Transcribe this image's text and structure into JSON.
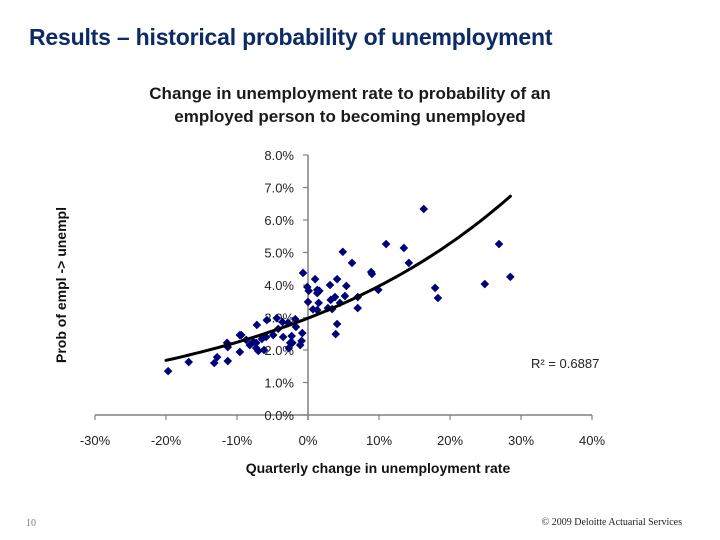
{
  "slide": {
    "title": "Results – historical probability of unemployment",
    "page_number": "10",
    "copyright": "© 2009 Deloitte Actuarial Services"
  },
  "colors": {
    "title": "#0b2a66",
    "marker": "#00007a",
    "trendline": "#000000",
    "axis": "#808080"
  },
  "chart_data": {
    "type": "scatter",
    "title": "Change in unemployment rate to probability of an employed person to becoming unemployed",
    "title_lines": [
      "Change in unemployment rate to probability of an",
      "employed person to becoming unemployed"
    ],
    "xlabel": "Quarterly change in unemployment rate",
    "ylabel": "Prob of empl -> unempl",
    "xlim": [
      -30,
      40
    ],
    "ylim": [
      0,
      8
    ],
    "x_ticks": [
      "-30%",
      "-20%",
      "-10%",
      "0%",
      "10%",
      "20%",
      "30%",
      "40%"
    ],
    "y_ticks": [
      "0.0%",
      "1.0%",
      "2.0%",
      "3.0%",
      "4.0%",
      "5.0%",
      "6.0%",
      "7.0%",
      "8.0%"
    ],
    "grid": false,
    "legend": null,
    "marker": "diamond",
    "trendline": {
      "type": "exponential",
      "equation_approx": "y = 2.98 * exp(0.0286 * x)",
      "x_range": [
        -20,
        28.5
      ],
      "r_squared_label": "R² = 0.6887"
    },
    "points": [
      {
        "x": -19.7,
        "y": 1.35
      },
      {
        "x": -16.8,
        "y": 1.63
      },
      {
        "x": -13.2,
        "y": 1.6
      },
      {
        "x": -12.8,
        "y": 1.78
      },
      {
        "x": -11.3,
        "y": 1.66
      },
      {
        "x": -11.3,
        "y": 2.09
      },
      {
        "x": -11.4,
        "y": 2.22
      },
      {
        "x": -9.6,
        "y": 1.94
      },
      {
        "x": -9.6,
        "y": 2.46
      },
      {
        "x": -9.4,
        "y": 2.46
      },
      {
        "x": -8.7,
        "y": 2.31
      },
      {
        "x": -8.2,
        "y": 2.15
      },
      {
        "x": -7.7,
        "y": 2.25
      },
      {
        "x": -7.3,
        "y": 2.22
      },
      {
        "x": -7.3,
        "y": 2.06
      },
      {
        "x": -7.0,
        "y": 1.97
      },
      {
        "x": -6.5,
        "y": 2.34
      },
      {
        "x": -7.2,
        "y": 2.77
      },
      {
        "x": -5.8,
        "y": 2.92
      },
      {
        "x": -6.2,
        "y": 2.0
      },
      {
        "x": -5.9,
        "y": 2.4
      },
      {
        "x": -4.9,
        "y": 2.46
      },
      {
        "x": -4.2,
        "y": 2.65
      },
      {
        "x": -4.4,
        "y": 2.98
      },
      {
        "x": -3.6,
        "y": 2.86
      },
      {
        "x": -3.5,
        "y": 2.4
      },
      {
        "x": -2.8,
        "y": 2.83
      },
      {
        "x": -2.5,
        "y": 2.22
      },
      {
        "x": -2.7,
        "y": 2.06
      },
      {
        "x": -1.8,
        "y": 2.95
      },
      {
        "x": -2.3,
        "y": 2.43
      },
      {
        "x": -1.7,
        "y": 2.71
      },
      {
        "x": -2.2,
        "y": 2.22
      },
      {
        "x": -0.9,
        "y": 2.28
      },
      {
        "x": -1.1,
        "y": 2.15
      },
      {
        "x": -0.8,
        "y": 2.52
      },
      {
        "x": -0.7,
        "y": 4.37
      },
      {
        "x": -0.1,
        "y": 3.94
      },
      {
        "x": 0.1,
        "y": 3.82
      },
      {
        "x": 0.0,
        "y": 3.48
      },
      {
        "x": 0.7,
        "y": 3.25
      },
      {
        "x": 1.0,
        "y": 4.18
      },
      {
        "x": 1.3,
        "y": 3.85
      },
      {
        "x": 1.3,
        "y": 3.75
      },
      {
        "x": 1.5,
        "y": 3.45
      },
      {
        "x": 1.3,
        "y": 3.23
      },
      {
        "x": 1.6,
        "y": 3.82
      },
      {
        "x": 3.1,
        "y": 4.0
      },
      {
        "x": 3.2,
        "y": 3.54
      },
      {
        "x": 2.8,
        "y": 3.29
      },
      {
        "x": 3.4,
        "y": 3.26
      },
      {
        "x": 4.1,
        "y": 4.18
      },
      {
        "x": 3.8,
        "y": 3.63
      },
      {
        "x": 4.1,
        "y": 2.8
      },
      {
        "x": 3.9,
        "y": 2.49
      },
      {
        "x": 4.9,
        "y": 5.02
      },
      {
        "x": 5.4,
        "y": 3.97
      },
      {
        "x": 5.2,
        "y": 3.66
      },
      {
        "x": 4.5,
        "y": 3.45
      },
      {
        "x": 6.2,
        "y": 4.68
      },
      {
        "x": 7.0,
        "y": 3.63
      },
      {
        "x": 7.0,
        "y": 3.29
      },
      {
        "x": 8.9,
        "y": 4.4
      },
      {
        "x": 9.0,
        "y": 4.34
      },
      {
        "x": 9.9,
        "y": 3.85
      },
      {
        "x": 11.0,
        "y": 5.26
      },
      {
        "x": 13.5,
        "y": 5.14
      },
      {
        "x": 14.2,
        "y": 4.68
      },
      {
        "x": 16.3,
        "y": 6.34
      },
      {
        "x": 17.9,
        "y": 3.91
      },
      {
        "x": 18.3,
        "y": 3.6
      },
      {
        "x": 24.9,
        "y": 4.03
      },
      {
        "x": 26.9,
        "y": 5.26
      },
      {
        "x": 28.5,
        "y": 4.25
      }
    ]
  }
}
